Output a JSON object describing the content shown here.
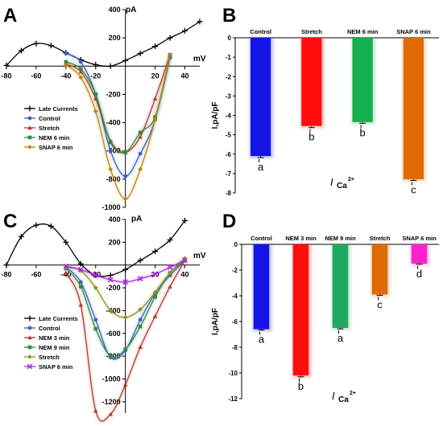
{
  "panels": [
    {
      "id": "A",
      "letter": "A",
      "chart_data": {
        "type": "line",
        "xlabel": "mV",
        "ylabel": "pA",
        "xlim": [
          -80,
          50
        ],
        "ylim": [
          -1000,
          400
        ],
        "xticks": [
          -80,
          -60,
          -40,
          -20,
          20,
          40
        ],
        "yticks": [
          400,
          200,
          -200,
          -400,
          -600,
          -800,
          -1000
        ],
        "legend_position": "bottom-left",
        "series": [
          {
            "name": "Late Currents",
            "color": "#000000",
            "marker": "plus",
            "x": [
              -80,
              -70,
              -60,
              -50,
              -40,
              -30,
              -20,
              -10,
              0,
              10,
              20,
              30,
              40,
              50
            ],
            "y": [
              5,
              110,
              160,
              145,
              95,
              45,
              10,
              0,
              40,
              90,
              140,
              200,
              250,
              315
            ]
          },
          {
            "name": "Control",
            "color": "#3c5ecb",
            "marker": "circle",
            "x": [
              -40,
              -30,
              -20,
              -10,
              0,
              10,
              20,
              30
            ],
            "y": [
              90,
              30,
              -200,
              -600,
              -780,
              -620,
              -380,
              60
            ]
          },
          {
            "name": "Stretch",
            "color": "#b03a2e",
            "marker": "triangle",
            "x": [
              -40,
              -30,
              -20,
              -10,
              0,
              10,
              20,
              30
            ],
            "y": [
              15,
              -40,
              -230,
              -530,
              -610,
              -500,
              -230,
              80
            ]
          },
          {
            "name": "NEM 6 min",
            "color": "#2e8b3e",
            "marker": "square",
            "x": [
              -40,
              -30,
              -20,
              -10,
              0,
              10,
              20,
              30
            ],
            "y": [
              30,
              -20,
              -200,
              -540,
              -610,
              -470,
              -360,
              80
            ]
          },
          {
            "name": "SNAP 6 min",
            "color": "#b8860b",
            "marker": "diamond",
            "x": [
              -40,
              -30,
              -20,
              -10,
              0,
              10,
              20,
              30
            ],
            "y": [
              10,
              -80,
              -320,
              -730,
              -940,
              -730,
              -380,
              80
            ]
          }
        ]
      }
    },
    {
      "id": "B",
      "letter": "B",
      "chart_data": {
        "type": "bar",
        "categories": [
          "Control",
          "Stretch",
          "NEM 6 min",
          "SNAP 6 min"
        ],
        "values": [
          -6.1,
          -4.55,
          -4.35,
          -7.3
        ],
        "errors": [
          0.08,
          0.08,
          0.06,
          0.06
        ],
        "colors": [
          "#1414e6",
          "#ff0d0d",
          "#13b04b",
          "#e06a00"
        ],
        "sig_letters": [
          "a",
          "b",
          "b",
          "c"
        ],
        "ylim": [
          -8,
          0
        ],
        "yticks": [
          0,
          -1,
          -2,
          -3,
          -4,
          -5,
          -6,
          -7,
          -8
        ],
        "ylabel": "I,pA/pF",
        "xlabel_main": "I",
        "xlabel_sub": "Ca",
        "xlabel_sup": "2+"
      }
    },
    {
      "id": "C",
      "letter": "C",
      "chart_data": {
        "type": "line",
        "xlabel": "mV",
        "ylabel": "pA",
        "xlim": [
          -80,
          50
        ],
        "ylim": [
          -1300,
          400
        ],
        "xticks": [
          -80,
          -60,
          -40,
          -20,
          20,
          40
        ],
        "yticks": [
          400,
          200,
          -200,
          -400,
          -600,
          -800,
          -1000,
          -1200
        ],
        "legend_position": "bottom-left",
        "series": [
          {
            "name": "Late Currents",
            "color": "#000000",
            "marker": "plus",
            "x": [
              -80,
              -70,
              -60,
              -50,
              -40,
              -30,
              -20,
              -10,
              0,
              10,
              20,
              30,
              40
            ],
            "y": [
              0,
              250,
              350,
              340,
              200,
              10,
              -90,
              -90,
              -40,
              40,
              120,
              220,
              390
            ]
          },
          {
            "name": "Control",
            "color": "#3c5ecb",
            "marker": "circle",
            "x": [
              -40,
              -30,
              -20,
              -10,
              0,
              10,
              20,
              30,
              40
            ],
            "y": [
              -20,
              -150,
              -480,
              -810,
              -750,
              -480,
              -250,
              -90,
              40
            ]
          },
          {
            "name": "NEM 3 min",
            "color": "#b03a2e",
            "marker": "triangle",
            "x": [
              -40,
              -30,
              -20,
              -10,
              0,
              10,
              20,
              30,
              40
            ],
            "y": [
              -70,
              -350,
              -1280,
              -1310,
              -1050,
              -720,
              -450,
              -190,
              40
            ]
          },
          {
            "name": "NEM 9 min",
            "color": "#2e8b3e",
            "marker": "square",
            "x": [
              -40,
              -30,
              -20,
              -10,
              0,
              10,
              20,
              30,
              40
            ],
            "y": [
              -30,
              -190,
              -560,
              -800,
              -740,
              -540,
              -280,
              -70,
              40
            ]
          },
          {
            "name": "Stretch",
            "color": "#8f8f1a",
            "marker": "diamond",
            "x": [
              -40,
              -30,
              -20,
              -10,
              0,
              10,
              20,
              30,
              40
            ],
            "y": [
              -20,
              -50,
              -200,
              -400,
              -460,
              -390,
              -240,
              -70,
              60
            ]
          },
          {
            "name": "SNAP 6 min",
            "color": "#b026e0",
            "marker": "cross",
            "x": [
              -40,
              -30,
              -20,
              -10,
              0,
              10,
              20,
              30,
              40
            ],
            "y": [
              -10,
              -40,
              -90,
              -130,
              -150,
              -120,
              -80,
              -20,
              40
            ]
          }
        ]
      }
    },
    {
      "id": "D",
      "letter": "D",
      "chart_data": {
        "type": "bar",
        "categories": [
          "Control",
          "NEM 3 min",
          "NEM 9 min",
          "Stretch",
          "SNAP 6 min"
        ],
        "values": [
          -6.6,
          -10.2,
          -6.5,
          -3.9,
          -1.5
        ],
        "errors": [
          0.06,
          0.1,
          0.07,
          0.06,
          0.05
        ],
        "colors": [
          "#1414e6",
          "#ff0d0d",
          "#20a85e",
          "#e06a00",
          "#ff22cc"
        ],
        "sig_letters": [
          "a",
          "b",
          "a",
          "c",
          "d"
        ],
        "ylim": [
          -12,
          0
        ],
        "yticks": [
          0,
          -2,
          -4,
          -6,
          -8,
          -10,
          -12
        ],
        "ylabel": "I,pA/pF",
        "xlabel_main": "I",
        "xlabel_sub": "Ca",
        "xlabel_sup": "2+"
      }
    }
  ]
}
